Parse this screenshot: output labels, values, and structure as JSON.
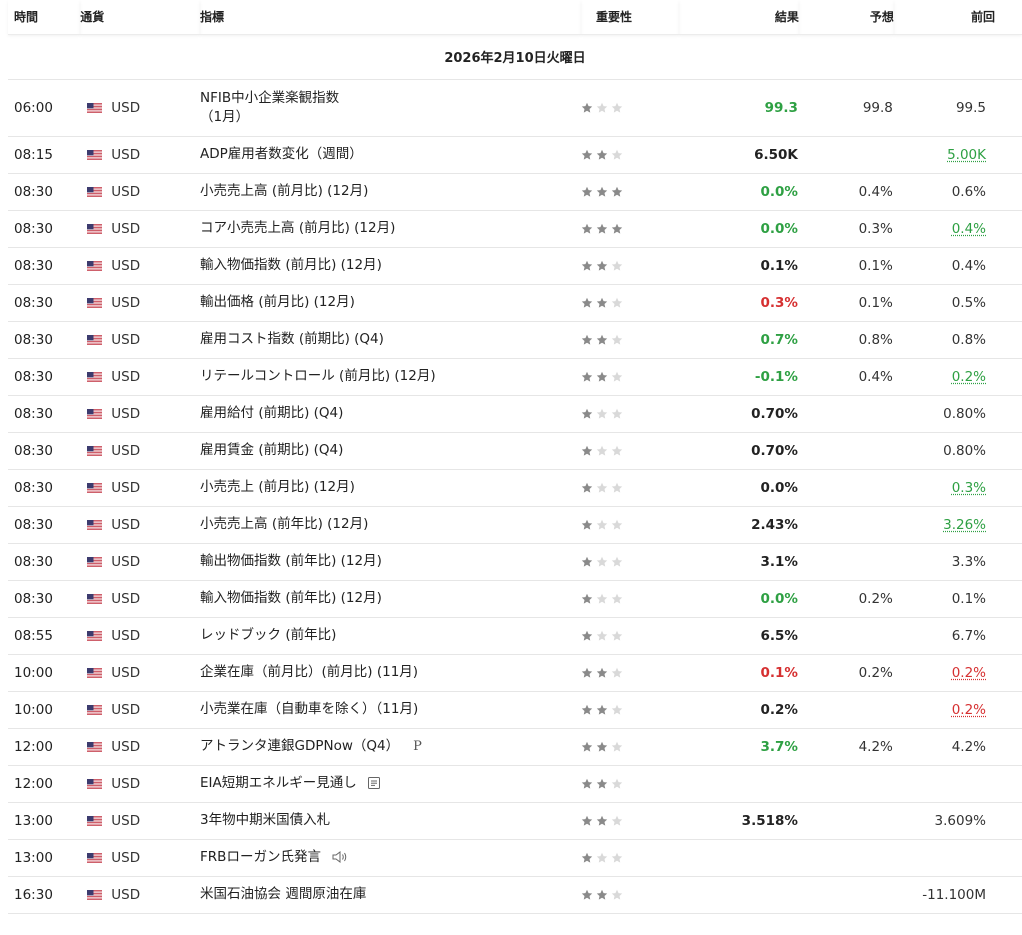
{
  "headers": {
    "time": "時間",
    "currency": "通貨",
    "indicator": "指標",
    "importance": "重要性",
    "actual": "結果",
    "forecast": "予想",
    "previous": "前回"
  },
  "date_label": "2026年2月10日火曜日",
  "colors": {
    "green": "#2ea043",
    "red": "#d63031",
    "star_on": "#8a8a8a",
    "star_off": "#d9d9d9"
  },
  "rows": [
    {
      "time": "06:00",
      "currency": "USD",
      "indicator": "NFIB中小企業楽観指数\n（1月）",
      "importance": 1,
      "actual": "99.3",
      "actual_color": "green",
      "forecast": "99.8",
      "previous": "99.5",
      "previous_color": "",
      "extra": "",
      "tall": true
    },
    {
      "time": "08:15",
      "currency": "USD",
      "indicator": "ADP雇用者数変化（週間）",
      "importance": 2,
      "actual": "6.50K",
      "actual_color": "",
      "forecast": "",
      "previous": "5.00K",
      "previous_color": "green",
      "extra": ""
    },
    {
      "time": "08:30",
      "currency": "USD",
      "indicator": "小売売上高 (前月比) (12月)",
      "importance": 3,
      "actual": "0.0%",
      "actual_color": "green",
      "forecast": "0.4%",
      "previous": "0.6%",
      "previous_color": "",
      "extra": ""
    },
    {
      "time": "08:30",
      "currency": "USD",
      "indicator": "コア小売売上高 (前月比) (12月)",
      "importance": 3,
      "actual": "0.0%",
      "actual_color": "green",
      "forecast": "0.3%",
      "previous": "0.4%",
      "previous_color": "green",
      "extra": ""
    },
    {
      "time": "08:30",
      "currency": "USD",
      "indicator": "輸入物価指数 (前月比) (12月)",
      "importance": 2,
      "actual": "0.1%",
      "actual_color": "",
      "forecast": "0.1%",
      "previous": "0.4%",
      "previous_color": "",
      "extra": ""
    },
    {
      "time": "08:30",
      "currency": "USD",
      "indicator": "輸出価格 (前月比) (12月)",
      "importance": 2,
      "actual": "0.3%",
      "actual_color": "red",
      "forecast": "0.1%",
      "previous": "0.5%",
      "previous_color": "",
      "extra": ""
    },
    {
      "time": "08:30",
      "currency": "USD",
      "indicator": "雇用コスト指数 (前期比) (Q4)",
      "importance": 2,
      "actual": "0.7%",
      "actual_color": "green",
      "forecast": "0.8%",
      "previous": "0.8%",
      "previous_color": "",
      "extra": ""
    },
    {
      "time": "08:30",
      "currency": "USD",
      "indicator": "リテールコントロール (前月比) (12月)",
      "importance": 2,
      "actual": "-0.1%",
      "actual_color": "green",
      "forecast": "0.4%",
      "previous": "0.2%",
      "previous_color": "green",
      "extra": ""
    },
    {
      "time": "08:30",
      "currency": "USD",
      "indicator": "雇用給付 (前期比) (Q4)",
      "importance": 1,
      "actual": "0.70%",
      "actual_color": "",
      "forecast": "",
      "previous": "0.80%",
      "previous_color": "",
      "extra": ""
    },
    {
      "time": "08:30",
      "currency": "USD",
      "indicator": "雇用賃金 (前期比) (Q4)",
      "importance": 1,
      "actual": "0.70%",
      "actual_color": "",
      "forecast": "",
      "previous": "0.80%",
      "previous_color": "",
      "extra": ""
    },
    {
      "time": "08:30",
      "currency": "USD",
      "indicator": "小売売上 (前月比) (12月)",
      "importance": 1,
      "actual": "0.0%",
      "actual_color": "",
      "forecast": "",
      "previous": "0.3%",
      "previous_color": "green",
      "extra": ""
    },
    {
      "time": "08:30",
      "currency": "USD",
      "indicator": "小売売上高 (前年比) (12月)",
      "importance": 1,
      "actual": "2.43%",
      "actual_color": "",
      "forecast": "",
      "previous": "3.26%",
      "previous_color": "green",
      "extra": ""
    },
    {
      "time": "08:30",
      "currency": "USD",
      "indicator": "輸出物価指数 (前年比) (12月)",
      "importance": 1,
      "actual": "3.1%",
      "actual_color": "",
      "forecast": "",
      "previous": "3.3%",
      "previous_color": "",
      "extra": ""
    },
    {
      "time": "08:30",
      "currency": "USD",
      "indicator": "輸入物価指数 (前年比) (12月)",
      "importance": 1,
      "actual": "0.0%",
      "actual_color": "green",
      "forecast": "0.2%",
      "previous": "0.1%",
      "previous_color": "",
      "extra": ""
    },
    {
      "time": "08:55",
      "currency": "USD",
      "indicator": "レッドブック (前年比)",
      "importance": 1,
      "actual": "6.5%",
      "actual_color": "",
      "forecast": "",
      "previous": "6.7%",
      "previous_color": "",
      "extra": ""
    },
    {
      "time": "10:00",
      "currency": "USD",
      "indicator": "企業在庫（前月比）(前月比) (11月)",
      "importance": 2,
      "actual": "0.1%",
      "actual_color": "red",
      "forecast": "0.2%",
      "previous": "0.2%",
      "previous_color": "red",
      "extra": ""
    },
    {
      "time": "10:00",
      "currency": "USD",
      "indicator": "小売業在庫（自動車を除く）（11月)",
      "importance": 2,
      "actual": "0.2%",
      "actual_color": "",
      "forecast": "",
      "previous": "0.2%",
      "previous_color": "red",
      "extra": ""
    },
    {
      "time": "12:00",
      "currency": "USD",
      "indicator": "アトランタ連銀GDPNow（Q4）",
      "importance": 2,
      "actual": "3.7%",
      "actual_color": "green",
      "forecast": "4.2%",
      "previous": "4.2%",
      "previous_color": "",
      "extra": "P"
    },
    {
      "time": "12:00",
      "currency": "USD",
      "indicator": "EIA短期エネルギー見通し",
      "importance": 2,
      "actual": "",
      "actual_color": "",
      "forecast": "",
      "previous": "",
      "previous_color": "",
      "extra": "document-icon"
    },
    {
      "time": "13:00",
      "currency": "USD",
      "indicator": "3年物中期米国債入札",
      "importance": 2,
      "actual": "3.518%",
      "actual_color": "",
      "forecast": "",
      "previous": "3.609%",
      "previous_color": "",
      "extra": ""
    },
    {
      "time": "13:00",
      "currency": "USD",
      "indicator": "FRBローガン氏発言",
      "importance": 1,
      "actual": "",
      "actual_color": "",
      "forecast": "",
      "previous": "",
      "previous_color": "",
      "extra": "speaker-icon"
    },
    {
      "time": "16:30",
      "currency": "USD",
      "indicator": "米国石油協会 週間原油在庫",
      "importance": 2,
      "actual": "",
      "actual_color": "",
      "forecast": "",
      "previous": "-11.100M",
      "previous_color": "",
      "extra": ""
    }
  ]
}
